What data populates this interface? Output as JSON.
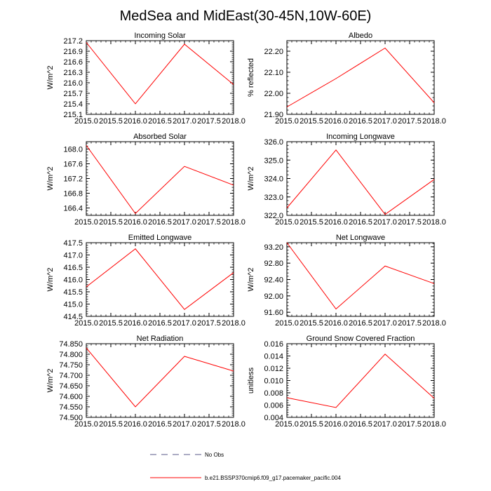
{
  "title": "MedSea and MidEast(30-45N,10W-60E)",
  "chart_data": [
    {
      "type": "line",
      "title": "Incoming Solar",
      "ylabel": "W/m^2",
      "x": [
        2015.0,
        2016.0,
        2017.0,
        2018.0
      ],
      "values": [
        217.15,
        215.4,
        217.1,
        215.95
      ],
      "xlim": [
        2015.0,
        2018.0
      ],
      "ylim": [
        215.1,
        217.2
      ],
      "xticks": [
        "2015.0",
        "2015.5",
        "2016.0",
        "2016.5",
        "2017.0",
        "2017.5",
        "2018.0"
      ],
      "yticks": [
        "215.1",
        "215.4",
        "215.7",
        "216.0",
        "216.3",
        "216.6",
        "216.9",
        "217.2"
      ]
    },
    {
      "type": "line",
      "title": "Albedo",
      "ylabel": "% reflected",
      "x": [
        2015.0,
        2016.0,
        2017.0,
        2018.0
      ],
      "values": [
        21.935,
        22.07,
        22.215,
        21.955
      ],
      "xlim": [
        2015.0,
        2018.0
      ],
      "ylim": [
        21.9,
        22.25
      ],
      "xticks": [
        "2015.0",
        "2015.5",
        "2016.0",
        "2016.5",
        "2017.0",
        "2017.5",
        "2018.0"
      ],
      "yticks": [
        "21.90",
        "22.00",
        "22.10",
        "22.20"
      ]
    },
    {
      "type": "line",
      "title": "Absorbed Solar",
      "ylabel": "W/m^2",
      "x": [
        2015.0,
        2016.0,
        2017.0,
        2018.0
      ],
      "values": [
        168.1,
        166.25,
        167.53,
        167.02
      ],
      "xlim": [
        2015.0,
        2018.0
      ],
      "ylim": [
        166.2,
        168.2
      ],
      "xticks": [
        "2015.0",
        "2015.5",
        "2016.0",
        "2016.5",
        "2017.0",
        "2017.5",
        "2018.0"
      ],
      "yticks": [
        "166.4",
        "166.8",
        "167.2",
        "167.6",
        "168.0"
      ]
    },
    {
      "type": "line",
      "title": "Incoming Longwave",
      "ylabel": "W/m^2",
      "x": [
        2015.0,
        2016.0,
        2017.0,
        2018.0
      ],
      "values": [
        322.4,
        325.55,
        322.05,
        323.95
      ],
      "xlim": [
        2015.0,
        2018.0
      ],
      "ylim": [
        322.0,
        326.0
      ],
      "xticks": [
        "2015.0",
        "2015.5",
        "2016.0",
        "2016.5",
        "2017.0",
        "2017.5",
        "2018.0"
      ],
      "yticks": [
        "322.0",
        "323.0",
        "324.0",
        "325.0",
        "326.0"
      ]
    },
    {
      "type": "line",
      "title": "Emitted Longwave",
      "ylabel": "W/m^2",
      "x": [
        2015.0,
        2016.0,
        2017.0,
        2018.0
      ],
      "values": [
        415.7,
        417.25,
        414.78,
        416.28
      ],
      "xlim": [
        2015.0,
        2018.0
      ],
      "ylim": [
        414.5,
        417.5
      ],
      "xticks": [
        "2015.0",
        "2015.5",
        "2016.0",
        "2016.5",
        "2017.0",
        "2017.5",
        "2018.0"
      ],
      "yticks": [
        "414.5",
        "415.0",
        "415.5",
        "416.0",
        "416.5",
        "417.0",
        "417.5"
      ]
    },
    {
      "type": "line",
      "title": "Net Longwave",
      "ylabel": "W/m^2",
      "x": [
        2015.0,
        2016.0,
        2017.0,
        2018.0
      ],
      "values": [
        93.3,
        91.68,
        92.73,
        92.3
      ],
      "xlim": [
        2015.0,
        2018.0
      ],
      "ylim": [
        91.5,
        93.3
      ],
      "xticks": [
        "2015.0",
        "2015.5",
        "2016.0",
        "2016.5",
        "2017.0",
        "2017.5",
        "2018.0"
      ],
      "yticks": [
        "91.60",
        "92.00",
        "92.40",
        "92.80",
        "93.20"
      ]
    },
    {
      "type": "line",
      "title": "Net Radiation",
      "ylabel": "W/m^2",
      "x": [
        2015.0,
        2016.0,
        2017.0,
        2018.0
      ],
      "values": [
        74.83,
        74.55,
        74.79,
        74.72
      ],
      "xlim": [
        2015.0,
        2018.0
      ],
      "ylim": [
        74.5,
        74.85
      ],
      "xticks": [
        "2015.0",
        "2015.5",
        "2016.0",
        "2016.5",
        "2017.0",
        "2017.5",
        "2018.0"
      ],
      "yticks": [
        "74.500",
        "74.550",
        "74.600",
        "74.650",
        "74.700",
        "74.750",
        "74.800",
        "74.850"
      ]
    },
    {
      "type": "line",
      "title": "Ground Snow Covered Fraction",
      "ylabel": "unitless",
      "x": [
        2015.0,
        2016.0,
        2017.0,
        2018.0
      ],
      "values": [
        0.0072,
        0.0056,
        0.0143,
        0.0071
      ],
      "xlim": [
        2015.0,
        2018.0
      ],
      "ylim": [
        0.004,
        0.016
      ],
      "xticks": [
        "2015.0",
        "2015.5",
        "2016.0",
        "2016.5",
        "2017.0",
        "2017.5",
        "2018.0"
      ],
      "yticks": [
        "0.004",
        "0.006",
        "0.008",
        "0.010",
        "0.012",
        "0.014",
        "0.016"
      ]
    }
  ],
  "legend": [
    {
      "label": "No Obs",
      "style": "dashed",
      "color": "#5a5a8a"
    },
    {
      "label": "b.e21.BSSP370cmip6.f09_g17.pacemaker_pacific.004",
      "style": "solid",
      "color": "#ff0000"
    }
  ],
  "colors": {
    "series": "#ff0000",
    "axis": "#000000"
  }
}
